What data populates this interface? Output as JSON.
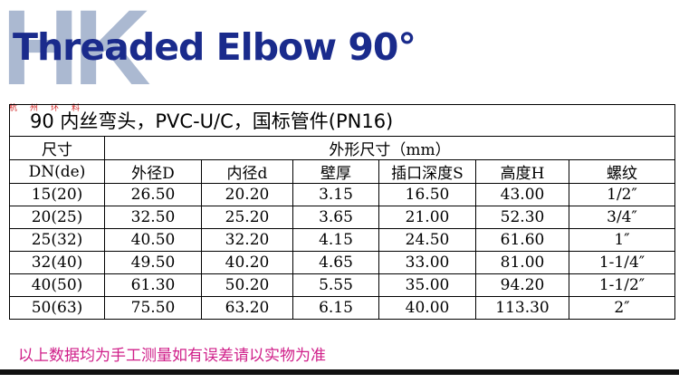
{
  "header": {
    "logo": "HK",
    "logo_sub": "杭州环料",
    "title": "Threaded Elbow 90°"
  },
  "table": {
    "caption": "90  内丝弯头，PVC-U/C，国标管件(PN16)",
    "header": [
      [
        "尺寸",
        "外形尺寸（mm）"
      ],
      [
        "DN(de)",
        "外径D",
        "内径d",
        "壁厚",
        "插口深度S",
        "高度H",
        "螺纹"
      ]
    ],
    "rows": [
      [
        "15(20)",
        "26.50",
        "20.20",
        "3.15",
        "16.50",
        "43.00",
        "1/2″"
      ],
      [
        "20(25)",
        "32.50",
        "25.20",
        "3.65",
        "21.00",
        "52.30",
        "3/4″"
      ],
      [
        "25(32)",
        "40.50",
        "32.20",
        "4.15",
        "24.50",
        "61.60",
        "1″"
      ],
      [
        "32(40)",
        "49.50",
        "40.20",
        "4.65",
        "33.00",
        "81.00",
        "1-1/4″"
      ],
      [
        "40(50)",
        "61.30",
        "50.20",
        "5.55",
        "35.00",
        "94.20",
        "1-1/2″"
      ],
      [
        "50(63)",
        "75.50",
        "63.20",
        "6.15",
        "40.00",
        "113.30",
        "2″"
      ]
    ]
  },
  "footer": "以上数据均为手工测量如有误差请以实物为准"
}
